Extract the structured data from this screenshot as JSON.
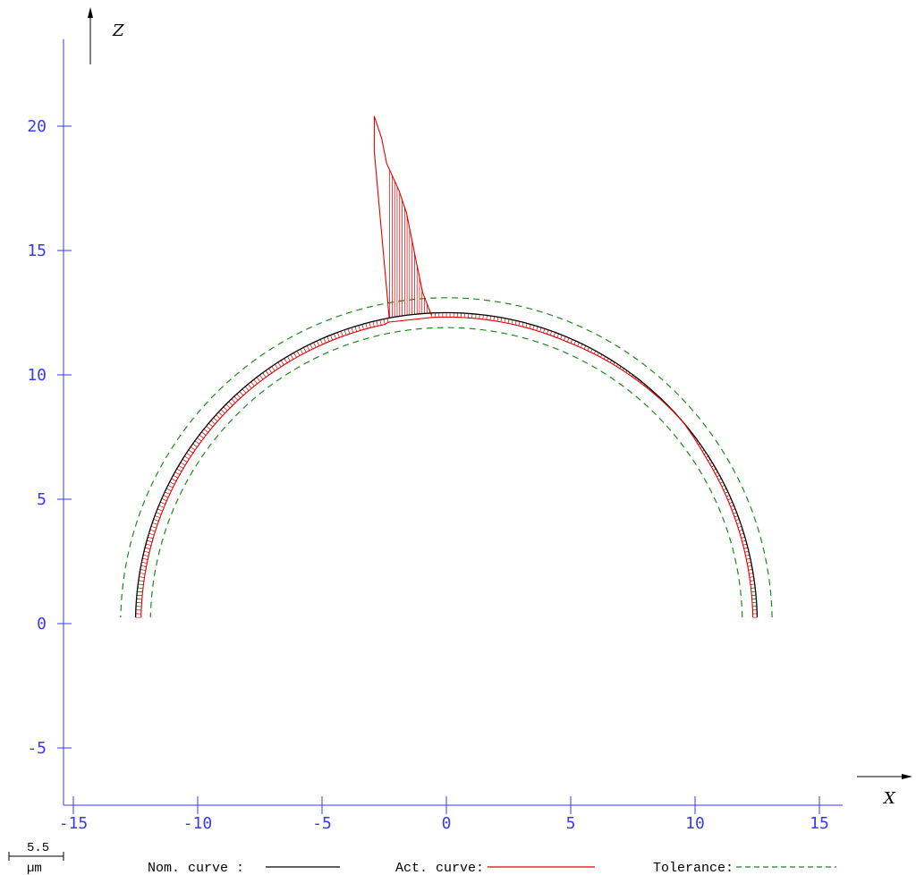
{
  "chart_data": {
    "type": "line",
    "xlabel": "X",
    "ylabel": "Z",
    "xlim": [
      -15.5,
      15.5
    ],
    "ylim": [
      -7.3,
      23.5
    ],
    "x_ticks": [
      -15,
      -10,
      -5,
      0,
      5,
      10,
      15
    ],
    "y_ticks": [
      -5,
      0,
      5,
      10,
      15,
      20
    ],
    "x_tick_labels": [
      "-15",
      "-10",
      "-5",
      "0",
      "5",
      "10",
      "15"
    ],
    "y_tick_labels": [
      "-5",
      "0",
      "5",
      "10",
      "15",
      "20"
    ],
    "nominal_radius": 12.5,
    "tolerance_radii": [
      11.9,
      13.1
    ],
    "series": [
      {
        "name": "Nom. curve :",
        "color": "#000000",
        "style": "solid",
        "shape": "semicircle",
        "center": [
          0,
          0
        ],
        "radius": 12.5,
        "x_range": [
          -12.5,
          12.5
        ]
      },
      {
        "name": "Act. curve:",
        "color": "#e00000",
        "style": "solid",
        "deviation_profile": [
          {
            "x": -12.5,
            "dev_um": -1.0
          },
          {
            "x": -10.0,
            "dev_um": -1.0
          },
          {
            "x": -5.0,
            "dev_um": -1.0
          },
          {
            "x": -2.4,
            "dev_um": -1.0
          },
          {
            "x": -2.3,
            "dev_um": 0.0
          },
          {
            "x": -0.8,
            "dev_um": 0.0
          },
          {
            "x": -0.6,
            "dev_um": -0.8
          },
          {
            "x": 5.0,
            "dev_um": -0.8
          },
          {
            "x": 9.5,
            "dev_um": 0.0
          },
          {
            "x": 10.5,
            "dev_um": -0.5
          },
          {
            "x": 12.6,
            "dev_um": -0.8
          }
        ],
        "spike_outline": [
          [
            -2.3,
            12.3
          ],
          [
            -2.9,
            19.0
          ],
          [
            -2.9,
            20.4
          ],
          [
            -2.6,
            19.5
          ],
          [
            -2.4,
            18.5
          ],
          [
            -1.9,
            17.4
          ],
          [
            -1.6,
            16.5
          ],
          [
            -1.4,
            15.5
          ],
          [
            -1.2,
            14.5
          ],
          [
            -0.95,
            13.3
          ],
          [
            -0.6,
            12.4
          ]
        ]
      },
      {
        "name": "Tolerance:",
        "color": "#1a8a1a",
        "style": "dashed",
        "bands": [
          13.1,
          11.9
        ]
      }
    ],
    "scale_bar": {
      "value": "5.5",
      "unit": "µm"
    },
    "grid": false,
    "legend_position": "bottom"
  },
  "legend": {
    "nominal_label": "Nom. curve :",
    "actual_label": "Act. curve:",
    "tolerance_label": "Tolerance:"
  }
}
